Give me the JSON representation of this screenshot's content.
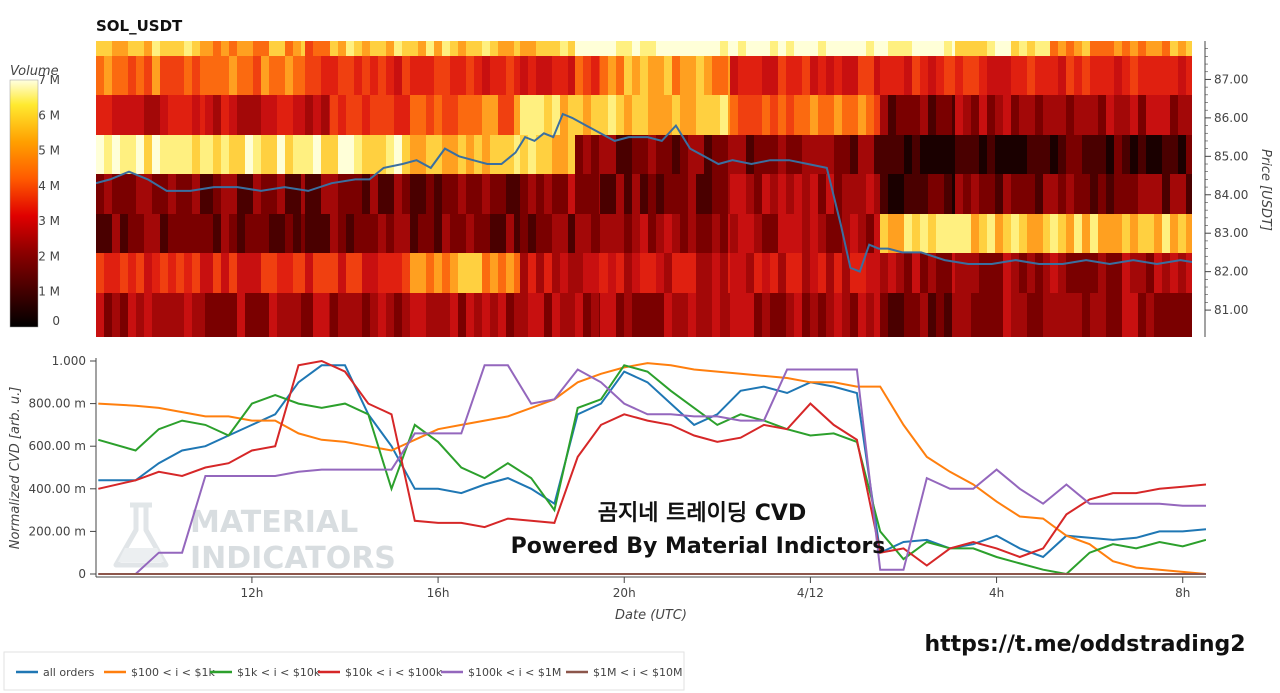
{
  "title": "SOL_USDT",
  "colors": {
    "all_orders": "#1f77b4",
    "r100_1k": "#ff7f0e",
    "r1k_10k": "#2ca02c",
    "r10k_100k": "#d62728",
    "r100k_1m": "#9467bd",
    "r1m_10m": "#8c564b",
    "price_line": "#3a6fa0"
  },
  "overlay_text": {
    "line1": "곰지네 트레이딩 CVD",
    "line2": "Powered By Material Indictors"
  },
  "watermark": {
    "line1": "MATERIAL",
    "line2": "INDICATORS"
  },
  "url_text": "https://t.me/oddstrading2",
  "chart_data": [
    {
      "type": "heatmap",
      "name": "price-volume-heatmap",
      "colorbar": {
        "label": "Volume",
        "ticks": [
          "0",
          "1 M",
          "2 M",
          "3 M",
          "4 M",
          "5 M",
          "6 M",
          "7 M"
        ],
        "range": [
          0,
          7
        ]
      },
      "price_axis": {
        "label": "Price [USDT]",
        "ticks": [
          "81.00",
          "82.00",
          "83.00",
          "84.00",
          "85.00",
          "86.00",
          "87.00"
        ],
        "range": [
          80.3,
          88.0
        ]
      },
      "price_series": {
        "x_hours": [
          9.5,
          9.8,
          10.2,
          10.6,
          11.0,
          11.5,
          12.0,
          12.5,
          13.0,
          13.5,
          14.0,
          14.5,
          15.0,
          15.3,
          15.6,
          16.0,
          16.3,
          16.6,
          16.9,
          17.2,
          17.5,
          17.8,
          18.1,
          18.4,
          18.6,
          18.8,
          19.0,
          19.2,
          19.4,
          19.6,
          19.9,
          20.2,
          20.5,
          20.8,
          21.2,
          21.5,
          21.8,
          22.1,
          22.4,
          22.7,
          23.0,
          23.4,
          23.8,
          24.2,
          24.6,
          25.0,
          25.3,
          25.5,
          25.7,
          25.9,
          26.1,
          26.3,
          26.6,
          27.0,
          27.5,
          28.0,
          28.5,
          29.0,
          29.5,
          30.0,
          30.5,
          31.0,
          31.5,
          32.0,
          32.5,
          33.0
        ],
        "price": [
          84.3,
          84.4,
          84.6,
          84.4,
          84.1,
          84.1,
          84.2,
          84.2,
          84.1,
          84.2,
          84.1,
          84.3,
          84.4,
          84.4,
          84.7,
          84.8,
          84.9,
          84.7,
          85.2,
          85.0,
          84.9,
          84.8,
          84.8,
          85.1,
          85.5,
          85.4,
          85.6,
          85.5,
          86.1,
          86.0,
          85.8,
          85.6,
          85.4,
          85.5,
          85.5,
          85.4,
          85.8,
          85.2,
          85.0,
          84.8,
          84.9,
          84.8,
          84.9,
          84.9,
          84.8,
          84.7,
          83.2,
          82.1,
          82.0,
          82.7,
          82.6,
          82.6,
          82.5,
          82.5,
          82.3,
          82.2,
          82.2,
          82.3,
          82.2,
          82.2,
          82.3,
          82.2,
          82.3,
          82.2,
          82.3,
          82.2
        ]
      }
    },
    {
      "type": "line",
      "name": "normalized-cvd",
      "xlabel": "Date (UTC)",
      "ylabel": "Normalized CVD [arb. u.]",
      "x_ticks": [
        "12h",
        "16h",
        "20h",
        "4/12",
        "4h",
        "8h"
      ],
      "x_tick_hours": [
        12,
        16,
        20,
        24,
        28,
        32
      ],
      "x_range_hours": [
        8.65,
        32.5
      ],
      "y_ticks": [
        "0",
        "200.00 m",
        "400.00 m",
        "600.00 m",
        "800.00 m",
        "1.000"
      ],
      "ylim": [
        0,
        1
      ],
      "x_hours": [
        8.7,
        9.5,
        10.0,
        10.5,
        11.0,
        11.5,
        12.0,
        12.5,
        13.0,
        13.5,
        14.0,
        14.5,
        15.0,
        15.5,
        16.0,
        16.5,
        17.0,
        17.5,
        18.0,
        18.5,
        19.0,
        19.5,
        20.0,
        20.5,
        21.0,
        21.5,
        22.0,
        22.5,
        23.0,
        23.5,
        24.0,
        24.5,
        25.0,
        25.5,
        26.0,
        26.5,
        27.0,
        27.5,
        28.0,
        28.5,
        29.0,
        29.5,
        30.0,
        30.5,
        31.0,
        31.5,
        32.0,
        32.5
      ],
      "series": [
        {
          "name": "all orders",
          "color_key": "all_orders",
          "values": [
            0.44,
            0.44,
            0.52,
            0.58,
            0.6,
            0.65,
            0.7,
            0.75,
            0.9,
            0.98,
            0.98,
            0.75,
            0.6,
            0.4,
            0.4,
            0.38,
            0.42,
            0.45,
            0.4,
            0.33,
            0.75,
            0.8,
            0.95,
            0.9,
            0.8,
            0.7,
            0.75,
            0.86,
            0.88,
            0.85,
            0.9,
            0.88,
            0.85,
            0.1,
            0.15,
            0.16,
            0.12,
            0.14,
            0.18,
            0.12,
            0.08,
            0.18,
            0.17,
            0.16,
            0.17,
            0.2,
            0.2,
            0.21
          ]
        },
        {
          "name": "$100 < i < $1k",
          "color_key": "r100_1k",
          "values": [
            0.8,
            0.79,
            0.78,
            0.76,
            0.74,
            0.74,
            0.72,
            0.72,
            0.66,
            0.63,
            0.62,
            0.6,
            0.58,
            0.63,
            0.68,
            0.7,
            0.72,
            0.74,
            0.78,
            0.82,
            0.9,
            0.94,
            0.97,
            0.99,
            0.98,
            0.96,
            0.95,
            0.94,
            0.93,
            0.92,
            0.9,
            0.9,
            0.88,
            0.88,
            0.7,
            0.55,
            0.48,
            0.42,
            0.34,
            0.27,
            0.26,
            0.18,
            0.14,
            0.06,
            0.03,
            0.02,
            0.01,
            0.0
          ]
        },
        {
          "name": "$1k < i < $10k",
          "color_key": "r1k_10k",
          "values": [
            0.63,
            0.58,
            0.68,
            0.72,
            0.7,
            0.65,
            0.8,
            0.84,
            0.8,
            0.78,
            0.8,
            0.75,
            0.4,
            0.7,
            0.62,
            0.5,
            0.45,
            0.52,
            0.45,
            0.3,
            0.78,
            0.82,
            0.98,
            0.95,
            0.86,
            0.78,
            0.7,
            0.75,
            0.72,
            0.68,
            0.65,
            0.66,
            0.62,
            0.2,
            0.07,
            0.15,
            0.12,
            0.12,
            0.08,
            0.05,
            0.02,
            0.0,
            0.1,
            0.14,
            0.12,
            0.15,
            0.13,
            0.16
          ]
        },
        {
          "name": "$10k < i < $100k",
          "color_key": "r10k_100k",
          "values": [
            0.4,
            0.44,
            0.48,
            0.46,
            0.5,
            0.52,
            0.58,
            0.6,
            0.98,
            1.0,
            0.95,
            0.8,
            0.75,
            0.25,
            0.24,
            0.24,
            0.22,
            0.26,
            0.25,
            0.24,
            0.55,
            0.7,
            0.75,
            0.72,
            0.7,
            0.65,
            0.62,
            0.64,
            0.7,
            0.68,
            0.8,
            0.7,
            0.63,
            0.1,
            0.12,
            0.04,
            0.12,
            0.15,
            0.12,
            0.08,
            0.12,
            0.28,
            0.35,
            0.38,
            0.38,
            0.4,
            0.41,
            0.42
          ]
        },
        {
          "name": "$100k < i < $1M",
          "color_key": "r100k_1m",
          "values": [
            0.0,
            0.0,
            0.1,
            0.1,
            0.46,
            0.46,
            0.46,
            0.46,
            0.48,
            0.49,
            0.49,
            0.49,
            0.49,
            0.66,
            0.66,
            0.66,
            0.98,
            0.98,
            0.8,
            0.82,
            0.96,
            0.9,
            0.8,
            0.75,
            0.75,
            0.74,
            0.74,
            0.72,
            0.72,
            0.96,
            0.96,
            0.96,
            0.96,
            0.02,
            0.02,
            0.45,
            0.4,
            0.4,
            0.49,
            0.4,
            0.33,
            0.42,
            0.33,
            0.33,
            0.33,
            0.33,
            0.32,
            0.32
          ]
        },
        {
          "name": "$1M < i < $10M",
          "color_key": "r1m_10m",
          "values": [
            0.0,
            0.0,
            0.0,
            0.0,
            0.0,
            0.0,
            0.0,
            0.0,
            0.0,
            0.0,
            0.0,
            0.0,
            0.0,
            0.0,
            0.0,
            0.0,
            0.0,
            0.0,
            0.0,
            0.0,
            0.0,
            0.0,
            0.0,
            0.0,
            0.0,
            0.0,
            0.0,
            0.0,
            0.0,
            0.0,
            0.0,
            0.0,
            0.0,
            0.0,
            0.0,
            0.0,
            0.0,
            0.0,
            0.0,
            0.0,
            0.0,
            0.0,
            0.0,
            0.0,
            0.0,
            0.0,
            0.0,
            0.0
          ]
        }
      ],
      "legend": {
        "placement": "bottom-left",
        "items": [
          "all orders",
          "$100 < i < $1k",
          "$1k < i < $10k",
          "$10k < i < $100k",
          "$100k < i < $1M",
          "$1M < i < $10M"
        ]
      }
    }
  ]
}
